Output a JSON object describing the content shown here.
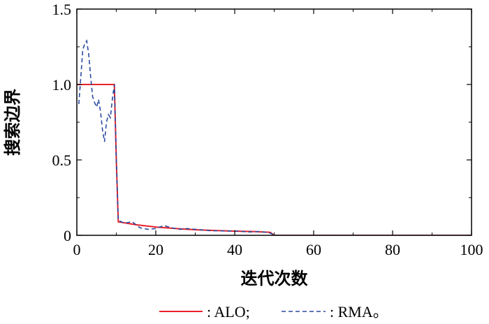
{
  "chart_data": {
    "type": "line",
    "xlabel": "迭代次数",
    "ylabel": "搜索边界",
    "xlim": [
      0,
      100
    ],
    "ylim": [
      0,
      1.5
    ],
    "xticks": [
      0,
      20,
      40,
      60,
      80,
      100
    ],
    "yticks": [
      0,
      0.5,
      1.0,
      1.5
    ],
    "xtick_labels": [
      "0",
      "20",
      "40",
      "60",
      "80",
      "100"
    ],
    "ytick_labels": [
      "0",
      "0.5",
      "1.0",
      "1.5"
    ],
    "grid": false,
    "legend_position": "bottom",
    "series": [
      {
        "name": ": ALO;",
        "color": "#e8202a",
        "style": "solid",
        "x": [
          0,
          9.5,
          9.5,
          10,
          10.5,
          15,
          20,
          25,
          30,
          35,
          40,
          45,
          49,
          50,
          100
        ],
        "y": [
          1.0,
          1.0,
          1.0,
          0.5,
          0.09,
          0.07,
          0.055,
          0.045,
          0.037,
          0.032,
          0.028,
          0.025,
          0.02,
          0.0,
          0.0
        ]
      },
      {
        "name": ": RMA。",
        "color": "#2a4aa0",
        "style": "dashed",
        "x": [
          0.5,
          1,
          1.5,
          2,
          2.5,
          3,
          3.5,
          4,
          4.5,
          5,
          5.5,
          6,
          6.5,
          7,
          7.5,
          8,
          8.5,
          9,
          9.5,
          10,
          10.5,
          12,
          14,
          16,
          18,
          20,
          22,
          24,
          26,
          28,
          30,
          32,
          34,
          36,
          38,
          40,
          42,
          44,
          46,
          48,
          49,
          50,
          60,
          70,
          80,
          90,
          100
        ],
        "y": [
          0.87,
          1.05,
          1.23,
          1.27,
          1.29,
          1.2,
          1.05,
          0.92,
          0.88,
          0.85,
          0.9,
          0.82,
          0.7,
          0.62,
          0.75,
          0.8,
          0.78,
          0.9,
          1.0,
          0.5,
          0.1,
          0.08,
          0.09,
          0.05,
          0.04,
          0.045,
          0.065,
          0.05,
          0.04,
          0.045,
          0.04,
          0.035,
          0.03,
          0.03,
          0.028,
          0.03,
          0.025,
          0.022,
          0.025,
          0.02,
          0.015,
          0.0,
          0.0,
          0.0,
          0.0,
          0.0,
          0.0
        ]
      }
    ]
  }
}
